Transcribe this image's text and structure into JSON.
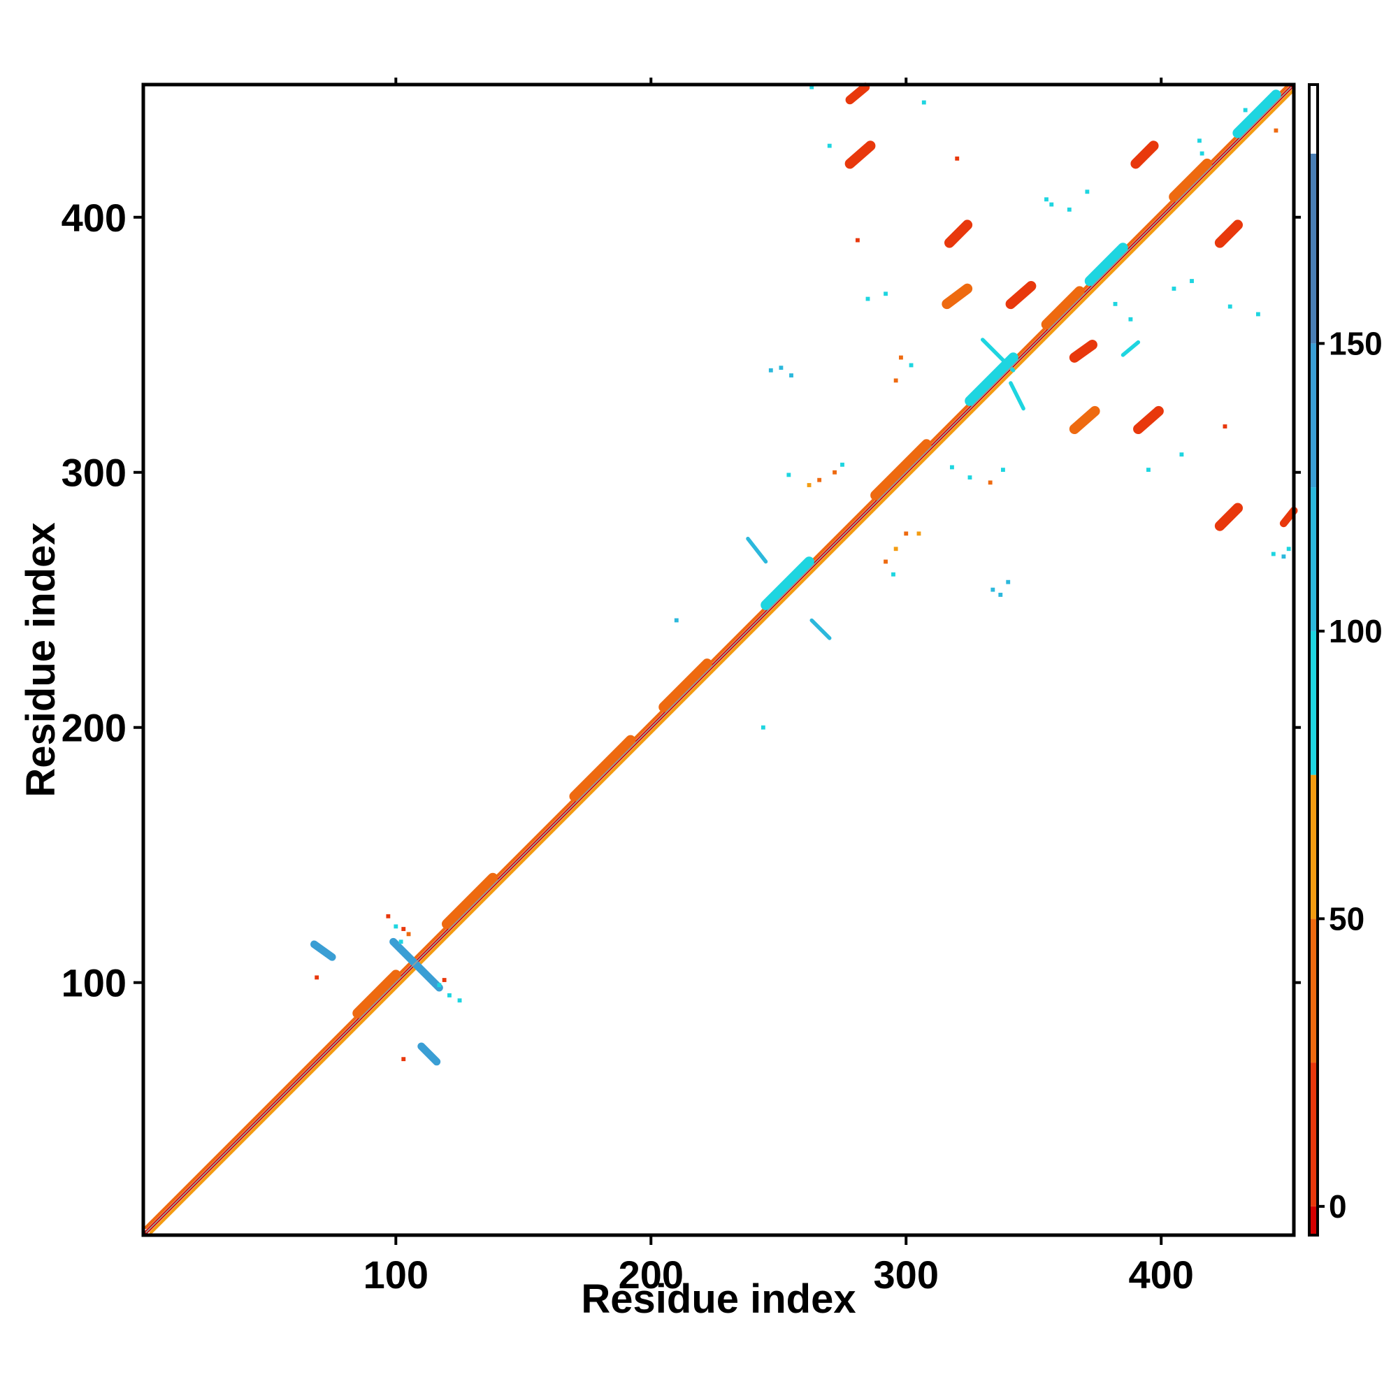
{
  "chart_data": {
    "type": "heatmap",
    "title": "",
    "xlabel": "Residue index",
    "ylabel": "Residue index",
    "xlim": [
      1,
      452
    ],
    "ylim": [
      1,
      452
    ],
    "xticks": [
      100,
      200,
      300,
      400
    ],
    "yticks": [
      100,
      200,
      300,
      400
    ],
    "colorbar": {
      "range": [
        -5,
        195
      ],
      "ticks": [
        0,
        50,
        100,
        150
      ],
      "levels": [
        {
          "from": -5,
          "to": 0,
          "color": "#d40000"
        },
        {
          "from": 0,
          "to": 25,
          "color": "#e8380c"
        },
        {
          "from": 25,
          "to": 50,
          "color": "#ee6a10"
        },
        {
          "from": 50,
          "to": 75,
          "color": "#f39c12"
        },
        {
          "from": 75,
          "to": 100,
          "color": "#1ed5e0"
        },
        {
          "from": 100,
          "to": 125,
          "color": "#2cb8dc"
        },
        {
          "from": 125,
          "to": 150,
          "color": "#3a9ed4"
        },
        {
          "from": 150,
          "to": 183,
          "color": "#4a7fb5"
        },
        {
          "from": 183,
          "to": 195,
          "color": "#ffffff"
        }
      ]
    },
    "diagonal": {
      "from": 1,
      "to": 452
    },
    "features": [
      {
        "kind": "diag",
        "x0": 2,
        "y0": 2,
        "x1": 452,
        "y1": 452,
        "color": "#d40000",
        "width": 1.4
      },
      {
        "kind": "diag",
        "x0": 2,
        "y0": 4,
        "x1": 450,
        "y1": 452,
        "color": "#ee6a10",
        "width": 1.2
      },
      {
        "kind": "diag",
        "x0": 4,
        "y0": 2,
        "x1": 452,
        "y1": 450,
        "color": "#f39c12",
        "width": 1.2
      },
      {
        "kind": "diag",
        "x0": 85,
        "y0": 88,
        "x1": 100,
        "y1": 103,
        "color": "#ee6a10",
        "width": 4
      },
      {
        "kind": "diag",
        "x0": 120,
        "y0": 123,
        "x1": 138,
        "y1": 141,
        "color": "#ee6a10",
        "width": 4
      },
      {
        "kind": "diag",
        "x0": 170,
        "y0": 173,
        "x1": 192,
        "y1": 195,
        "color": "#ee6a10",
        "width": 4
      },
      {
        "kind": "diag",
        "x0": 205,
        "y0": 208,
        "x1": 222,
        "y1": 225,
        "color": "#ee6a10",
        "width": 4
      },
      {
        "kind": "diag",
        "x0": 245,
        "y0": 248,
        "x1": 262,
        "y1": 265,
        "color": "#1ed5e0",
        "width": 4
      },
      {
        "kind": "diag",
        "x0": 288,
        "y0": 291,
        "x1": 308,
        "y1": 311,
        "color": "#ee6a10",
        "width": 4
      },
      {
        "kind": "diag",
        "x0": 325,
        "y0": 328,
        "x1": 342,
        "y1": 345,
        "color": "#1ed5e0",
        "width": 4
      },
      {
        "kind": "diag",
        "x0": 355,
        "y0": 358,
        "x1": 368,
        "y1": 371,
        "color": "#ee6a10",
        "width": 4
      },
      {
        "kind": "diag",
        "x0": 372,
        "y0": 375,
        "x1": 385,
        "y1": 388,
        "color": "#1ed5e0",
        "width": 4
      },
      {
        "kind": "diag",
        "x0": 405,
        "y0": 408,
        "x1": 418,
        "y1": 421,
        "color": "#ee6a10",
        "width": 4
      },
      {
        "kind": "diag",
        "x0": 430,
        "y0": 433,
        "x1": 445,
        "y1": 448,
        "color": "#1ed5e0",
        "width": 4
      },
      {
        "kind": "anti",
        "x0": 99,
        "y0": 116,
        "x1": 117,
        "y1": 98,
        "color": "#3a9ed4",
        "width": 3
      },
      {
        "kind": "anti",
        "x0": 68,
        "y0": 115,
        "x1": 75,
        "y1": 110,
        "color": "#3a9ed4",
        "width": 3
      },
      {
        "kind": "anti",
        "x0": 110,
        "y0": 75,
        "x1": 116,
        "y1": 69,
        "color": "#3a9ed4",
        "width": 3
      },
      {
        "kind": "diag",
        "x0": 278,
        "y0": 446,
        "x1": 284,
        "y1": 451,
        "color": "#e8380c",
        "width": 3.5
      },
      {
        "kind": "diag",
        "x0": 278,
        "y0": 421,
        "x1": 286,
        "y1": 428,
        "color": "#e8380c",
        "width": 4
      },
      {
        "kind": "diag",
        "x0": 390,
        "y0": 421,
        "x1": 397,
        "y1": 428,
        "color": "#e8380c",
        "width": 4
      },
      {
        "kind": "diag",
        "x0": 317,
        "y0": 390,
        "x1": 324,
        "y1": 397,
        "color": "#e8380c",
        "width": 4
      },
      {
        "kind": "diag",
        "x0": 423,
        "y0": 390,
        "x1": 430,
        "y1": 397,
        "color": "#e8380c",
        "width": 4
      },
      {
        "kind": "diag",
        "x0": 316,
        "y0": 366,
        "x1": 324,
        "y1": 372,
        "color": "#ee6a10",
        "width": 4
      },
      {
        "kind": "diag",
        "x0": 341,
        "y0": 366,
        "x1": 349,
        "y1": 373,
        "color": "#e8380c",
        "width": 4
      },
      {
        "kind": "diag",
        "x0": 366,
        "y0": 345,
        "x1": 373,
        "y1": 350,
        "color": "#e8380c",
        "width": 4
      },
      {
        "kind": "diag",
        "x0": 366,
        "y0": 317,
        "x1": 374,
        "y1": 324,
        "color": "#ee6a10",
        "width": 4
      },
      {
        "kind": "diag",
        "x0": 391,
        "y0": 317,
        "x1": 399,
        "y1": 324,
        "color": "#e8380c",
        "width": 4
      },
      {
        "kind": "diag",
        "x0": 423,
        "y0": 279,
        "x1": 430,
        "y1": 286,
        "color": "#e8380c",
        "width": 4
      },
      {
        "kind": "diag",
        "x0": 448,
        "y0": 280,
        "x1": 452,
        "y1": 285,
        "color": "#e8380c",
        "width": 3
      },
      {
        "kind": "diag",
        "x0": 385,
        "y0": 346,
        "x1": 391,
        "y1": 351,
        "color": "#1ed5e0",
        "width": 1.5
      },
      {
        "kind": "anti",
        "x0": 238,
        "y0": 274,
        "x1": 245,
        "y1": 265,
        "color": "#2cb8dc",
        "width": 1.5
      },
      {
        "kind": "anti",
        "x0": 263,
        "y0": 242,
        "x1": 270,
        "y1": 235,
        "color": "#2cb8dc",
        "width": 1.5
      },
      {
        "kind": "anti",
        "x0": 330,
        "y0": 352,
        "x1": 342,
        "y1": 340,
        "color": "#1ed5e0",
        "width": 1.5
      },
      {
        "kind": "anti",
        "x0": 341,
        "y0": 335,
        "x1": 346,
        "y1": 325,
        "color": "#1ed5e0",
        "width": 1.5
      }
    ],
    "points": [
      [
        285,
        368,
        "#1ed5e0"
      ],
      [
        292,
        370,
        "#1ed5e0"
      ],
      [
        298,
        345,
        "#ee6a10"
      ],
      [
        296,
        336,
        "#ee6a10"
      ],
      [
        302,
        342,
        "#1ed5e0"
      ],
      [
        247,
        340,
        "#2cb8dc"
      ],
      [
        251,
        341,
        "#2cb8dc"
      ],
      [
        255,
        338,
        "#2cb8dc"
      ],
      [
        266,
        297,
        "#ee6a10"
      ],
      [
        272,
        300,
        "#ee6a10"
      ],
      [
        275,
        303,
        "#1ed5e0"
      ],
      [
        254,
        299,
        "#1ed5e0"
      ],
      [
        262,
        295,
        "#f39c12"
      ],
      [
        292,
        265,
        "#ee6a10"
      ],
      [
        296,
        270,
        "#f39c12"
      ],
      [
        300,
        276,
        "#ee6a10"
      ],
      [
        305,
        276,
        "#f39c12"
      ],
      [
        295,
        260,
        "#1ed5e0"
      ],
      [
        334,
        254,
        "#2cb8dc"
      ],
      [
        337,
        252,
        "#2cb8dc"
      ],
      [
        340,
        257,
        "#2cb8dc"
      ],
      [
        318,
        302,
        "#1ed5e0"
      ],
      [
        325,
        298,
        "#1ed5e0"
      ],
      [
        333,
        296,
        "#ee6a10"
      ],
      [
        338,
        301,
        "#1ed5e0"
      ],
      [
        355,
        407,
        "#1ed5e0"
      ],
      [
        357,
        405,
        "#1ed5e0"
      ],
      [
        364,
        403,
        "#1ed5e0"
      ],
      [
        371,
        410,
        "#1ed5e0"
      ],
      [
        382,
        366,
        "#1ed5e0"
      ],
      [
        388,
        360,
        "#1ed5e0"
      ],
      [
        380,
        384,
        "#1ed5e0"
      ],
      [
        378,
        380,
        "#1ed5e0"
      ],
      [
        405,
        372,
        "#1ed5e0"
      ],
      [
        412,
        375,
        "#1ed5e0"
      ],
      [
        427,
        365,
        "#1ed5e0"
      ],
      [
        438,
        362,
        "#1ed5e0"
      ],
      [
        444,
        268,
        "#1ed5e0"
      ],
      [
        450,
        270,
        "#1ed5e0"
      ],
      [
        448,
        267,
        "#2cb8dc"
      ],
      [
        416,
        425,
        "#1ed5e0"
      ],
      [
        415,
        430,
        "#1ed5e0"
      ],
      [
        445,
        434,
        "#ee6a10"
      ],
      [
        446,
        448,
        "#1ed5e0"
      ],
      [
        433,
        442,
        "#1ed5e0"
      ],
      [
        425,
        318,
        "#e8380c"
      ],
      [
        395,
        301,
        "#1ed5e0"
      ],
      [
        408,
        307,
        "#1ed5e0"
      ],
      [
        97,
        126,
        "#e8380c"
      ],
      [
        100,
        122,
        "#1ed5e0"
      ],
      [
        103,
        121,
        "#e8380c"
      ],
      [
        105,
        119,
        "#ee6a10"
      ],
      [
        102,
        116,
        "#1ed5e0"
      ],
      [
        117,
        99,
        "#1ed5e0"
      ],
      [
        121,
        95,
        "#1ed5e0"
      ],
      [
        125,
        93,
        "#1ed5e0"
      ],
      [
        119,
        101,
        "#e8380c"
      ],
      [
        69,
        102,
        "#e8380c"
      ],
      [
        103,
        70,
        "#e8380c"
      ],
      [
        210,
        242,
        "#2cb8dc"
      ],
      [
        244,
        200,
        "#1ed5e0"
      ],
      [
        281,
        391,
        "#e8380c"
      ],
      [
        320,
        423,
        "#e8380c"
      ],
      [
        307,
        445,
        "#1ed5e0"
      ],
      [
        270,
        428,
        "#1ed5e0"
      ],
      [
        263,
        451,
        "#1ed5e0"
      ]
    ]
  }
}
